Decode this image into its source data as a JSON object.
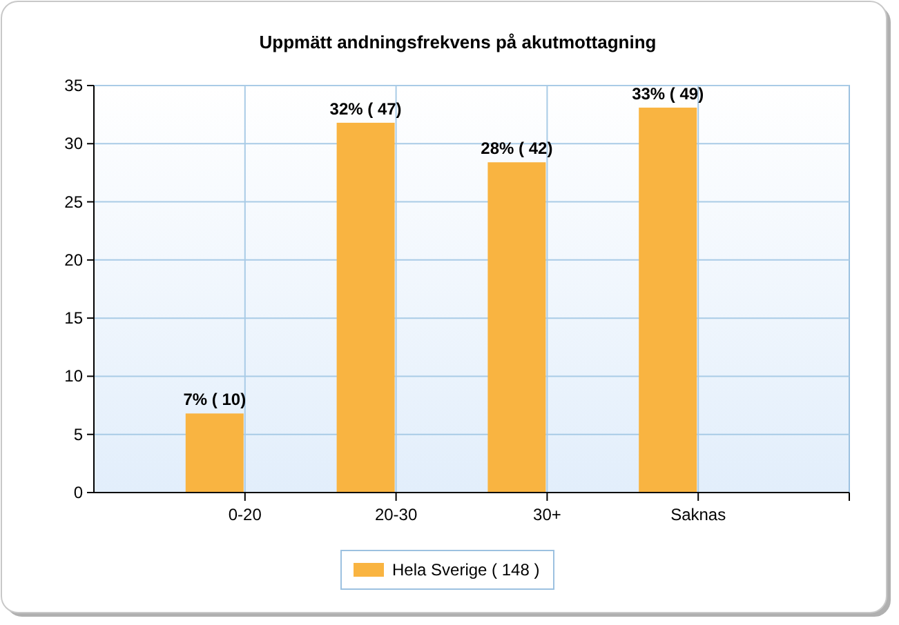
{
  "chart_data": {
    "type": "bar",
    "title": "Uppmätt andningsfrekvens på akutmottagning",
    "categories": [
      "0-20",
      "20-30",
      "30+",
      "Saknas"
    ],
    "series": [
      {
        "name": "Hela Sverige  ( 148 )",
        "color": "#f9b441",
        "values": [
          6.8,
          31.8,
          28.4,
          33.1
        ],
        "value_labels": [
          "7% ( 10)",
          "32% ( 47)",
          "28% ( 42)",
          "33% ( 49)"
        ]
      }
    ],
    "ylim": [
      0,
      35
    ],
    "yticks": [
      0,
      5,
      10,
      15,
      20,
      25,
      30,
      35
    ],
    "grid": true,
    "legend": "bottom"
  }
}
